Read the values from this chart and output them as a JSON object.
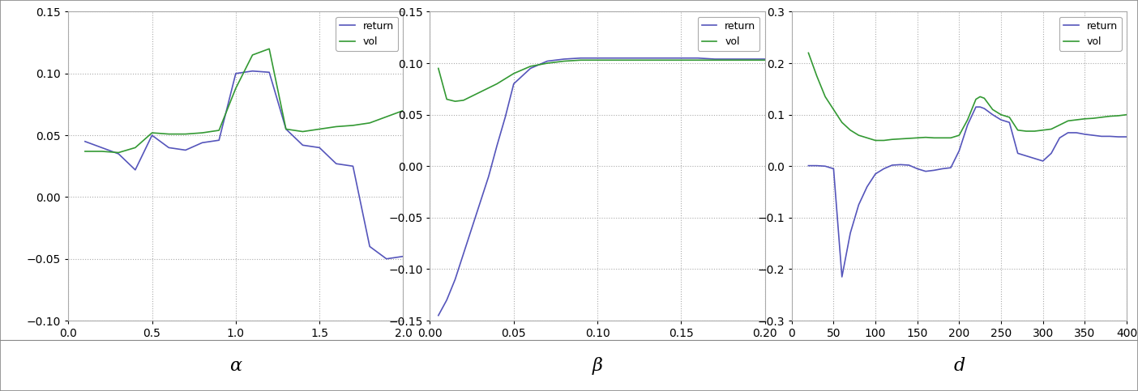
{
  "alpha": {
    "return_x": [
      0.1,
      0.2,
      0.3,
      0.4,
      0.5,
      0.6,
      0.7,
      0.8,
      0.9,
      1.0,
      1.1,
      1.2,
      1.3,
      1.4,
      1.5,
      1.6,
      1.7,
      1.8,
      1.9,
      2.0
    ],
    "return_y": [
      0.045,
      0.04,
      0.035,
      0.022,
      0.05,
      0.04,
      0.038,
      0.044,
      0.046,
      0.1,
      0.102,
      0.101,
      0.055,
      0.042,
      0.04,
      0.027,
      0.025,
      -0.04,
      -0.05,
      -0.048
    ],
    "vol_x": [
      0.1,
      0.2,
      0.3,
      0.4,
      0.5,
      0.6,
      0.7,
      0.8,
      0.9,
      1.0,
      1.1,
      1.2,
      1.3,
      1.4,
      1.5,
      1.6,
      1.7,
      1.8,
      1.9,
      2.0
    ],
    "vol_y": [
      0.037,
      0.037,
      0.036,
      0.04,
      0.052,
      0.051,
      0.051,
      0.052,
      0.054,
      0.088,
      0.115,
      0.12,
      0.055,
      0.053,
      0.055,
      0.057,
      0.058,
      0.06,
      0.065,
      0.07
    ],
    "xlim": [
      0.0,
      2.0
    ],
    "ylim": [
      -0.1,
      0.15
    ],
    "xlabel": "α",
    "xticks": [
      0.0,
      0.5,
      1.0,
      1.5,
      2.0
    ],
    "yticks": [
      -0.1,
      -0.05,
      0.0,
      0.05,
      0.1,
      0.15
    ]
  },
  "beta": {
    "return_x": [
      0.005,
      0.01,
      0.015,
      0.02,
      0.025,
      0.03,
      0.035,
      0.04,
      0.045,
      0.05,
      0.06,
      0.07,
      0.08,
      0.09,
      0.1,
      0.11,
      0.12,
      0.13,
      0.14,
      0.15,
      0.16,
      0.17,
      0.18,
      0.19,
      0.2
    ],
    "return_y": [
      -0.145,
      -0.13,
      -0.11,
      -0.085,
      -0.06,
      -0.035,
      -0.01,
      0.02,
      0.048,
      0.08,
      0.095,
      0.102,
      0.104,
      0.105,
      0.105,
      0.105,
      0.105,
      0.105,
      0.105,
      0.105,
      0.105,
      0.104,
      0.104,
      0.104,
      0.104
    ],
    "vol_x": [
      0.005,
      0.01,
      0.015,
      0.02,
      0.025,
      0.03,
      0.035,
      0.04,
      0.045,
      0.05,
      0.06,
      0.07,
      0.08,
      0.09,
      0.1,
      0.11,
      0.12,
      0.13,
      0.14,
      0.15,
      0.16,
      0.17,
      0.18,
      0.19,
      0.2
    ],
    "vol_y": [
      0.095,
      0.065,
      0.063,
      0.064,
      0.068,
      0.072,
      0.076,
      0.08,
      0.085,
      0.09,
      0.097,
      0.1,
      0.102,
      0.103,
      0.103,
      0.103,
      0.103,
      0.103,
      0.103,
      0.103,
      0.103,
      0.103,
      0.103,
      0.103,
      0.103
    ],
    "xlim": [
      0.0,
      0.2
    ],
    "ylim": [
      -0.15,
      0.15
    ],
    "xlabel": "β",
    "xticks": [
      0.0,
      0.05,
      0.1,
      0.15,
      0.2
    ],
    "yticks": [
      -0.15,
      -0.1,
      -0.05,
      0.0,
      0.05,
      0.1,
      0.15
    ]
  },
  "d": {
    "return_x": [
      20,
      30,
      40,
      50,
      60,
      70,
      80,
      90,
      100,
      110,
      120,
      130,
      140,
      150,
      160,
      170,
      180,
      190,
      200,
      210,
      220,
      225,
      230,
      240,
      250,
      260,
      270,
      280,
      290,
      300,
      310,
      320,
      330,
      340,
      350,
      360,
      370,
      380,
      390,
      400
    ],
    "return_y": [
      0.001,
      0.001,
      0.0,
      -0.005,
      -0.215,
      -0.13,
      -0.075,
      -0.04,
      -0.015,
      -0.005,
      0.002,
      0.003,
      0.002,
      -0.005,
      -0.01,
      -0.008,
      -0.005,
      -0.003,
      0.03,
      0.08,
      0.115,
      0.115,
      0.112,
      0.1,
      0.09,
      0.085,
      0.025,
      0.02,
      0.015,
      0.01,
      0.025,
      0.055,
      0.065,
      0.065,
      0.062,
      0.06,
      0.058,
      0.058,
      0.057,
      0.057
    ],
    "vol_x": [
      20,
      30,
      40,
      50,
      60,
      70,
      80,
      90,
      100,
      110,
      120,
      130,
      140,
      150,
      160,
      170,
      180,
      190,
      200,
      210,
      220,
      225,
      230,
      240,
      250,
      260,
      270,
      280,
      290,
      300,
      310,
      320,
      330,
      340,
      350,
      360,
      370,
      380,
      390,
      400
    ],
    "vol_y": [
      0.22,
      0.175,
      0.135,
      0.11,
      0.085,
      0.07,
      0.06,
      0.055,
      0.05,
      0.05,
      0.052,
      0.053,
      0.054,
      0.055,
      0.056,
      0.055,
      0.055,
      0.055,
      0.06,
      0.09,
      0.13,
      0.135,
      0.132,
      0.11,
      0.1,
      0.095,
      0.07,
      0.068,
      0.068,
      0.07,
      0.072,
      0.08,
      0.088,
      0.09,
      0.092,
      0.093,
      0.095,
      0.097,
      0.098,
      0.1
    ],
    "xlim": [
      0,
      400
    ],
    "ylim": [
      -0.3,
      0.3
    ],
    "xlabel": "d",
    "xticks": [
      0,
      50,
      100,
      150,
      200,
      250,
      300,
      350,
      400
    ],
    "yticks": [
      -0.3,
      -0.2,
      -0.1,
      0.0,
      0.1,
      0.2,
      0.3
    ]
  },
  "return_color": "#5555bb",
  "vol_color": "#339933",
  "bg_color": "#ffffff",
  "grid_color": "#aaaaaa",
  "label_fontsize": 16,
  "tick_fontsize": 10,
  "legend_fontsize": 9,
  "line_width": 1.2,
  "fig_width": 14.04,
  "fig_height": 4.83,
  "dpi": 100
}
